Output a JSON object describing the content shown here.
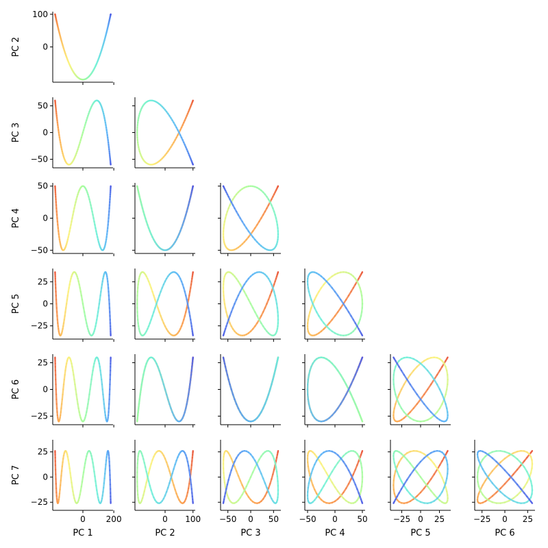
{
  "chart_data": {
    "type": "pairplot",
    "description_components": [
      "PC 1",
      "PC 2",
      "PC 3",
      "PC 4",
      "PC 5",
      "PC 6",
      "PC 7"
    ],
    "colormap": "jet",
    "colormap_stops": [
      "#e8523a",
      "#fca74f",
      "#fbf27c",
      "#a8fc9c",
      "#6ff0d8",
      "#5cb4f7",
      "#4f5be5"
    ],
    "series_trajectory_params": {
      "t_range": [
        0,
        1
      ],
      "amplitudes": [
        180,
        100,
        60,
        50,
        36,
        30,
        26
      ],
      "pc1": "-180*cos(pi*t)",
      "pc_k": "A_k*cos(k*pi*t), k=2..7"
    },
    "columns": [
      {
        "xlabel": "PC 1",
        "xlim": [
          -195,
          195
        ],
        "xticks": [
          0,
          200
        ],
        "xtick_labels": [
          "0",
          "200"
        ]
      },
      {
        "xlabel": "PC 2",
        "xlim": [
          -108,
          108
        ],
        "xticks": [
          0,
          100
        ],
        "xtick_labels": [
          "0",
          "100"
        ]
      },
      {
        "xlabel": "PC 3",
        "xlim": [
          -66,
          66
        ],
        "xticks": [
          -50,
          0,
          50
        ],
        "xtick_labels": [
          "−50",
          "0",
          "50"
        ]
      },
      {
        "xlabel": "PC 4",
        "xlim": [
          -55,
          55
        ],
        "xticks": [
          -50,
          0,
          50
        ],
        "xtick_labels": [
          "−50",
          "0",
          "50"
        ]
      },
      {
        "xlabel": "PC 5",
        "xlim": [
          -40,
          40
        ],
        "xticks": [
          -25,
          0,
          25
        ],
        "xtick_labels": [
          "−25",
          "0",
          "25"
        ]
      },
      {
        "xlabel": "PC 6",
        "xlim": [
          -33,
          33
        ],
        "xticks": [
          -25,
          0,
          25
        ],
        "xtick_labels": [
          "−25",
          "0",
          "25"
        ]
      }
    ],
    "rows": [
      {
        "ylabel": "PC 2",
        "ylim": [
          -108,
          108
        ],
        "yticks": [
          0,
          100
        ],
        "ytick_labels": [
          "0",
          "100"
        ]
      },
      {
        "ylabel": "PC 3",
        "ylim": [
          -66,
          66
        ],
        "yticks": [
          -50,
          0,
          50
        ],
        "ytick_labels": [
          "−50",
          "0",
          "50"
        ]
      },
      {
        "ylabel": "PC 4",
        "ylim": [
          -55,
          55
        ],
        "yticks": [
          -50,
          0,
          50
        ],
        "ytick_labels": [
          "−50",
          "0",
          "50"
        ]
      },
      {
        "ylabel": "PC 5",
        "ylim": [
          -40,
          40
        ],
        "yticks": [
          -25,
          0,
          25
        ],
        "ytick_labels": [
          "−25",
          "0",
          "25"
        ]
      },
      {
        "ylabel": "PC 6",
        "ylim": [
          -33,
          33
        ],
        "yticks": [
          -25,
          0,
          25
        ],
        "ytick_labels": [
          "−25",
          "0",
          "25"
        ]
      },
      {
        "ylabel": "PC 7",
        "ylim": [
          -33,
          37
        ],
        "yticks": [
          -25,
          0,
          25
        ],
        "ytick_labels": [
          "−25",
          "0",
          "25"
        ]
      }
    ],
    "grid": false,
    "legend": "none"
  }
}
